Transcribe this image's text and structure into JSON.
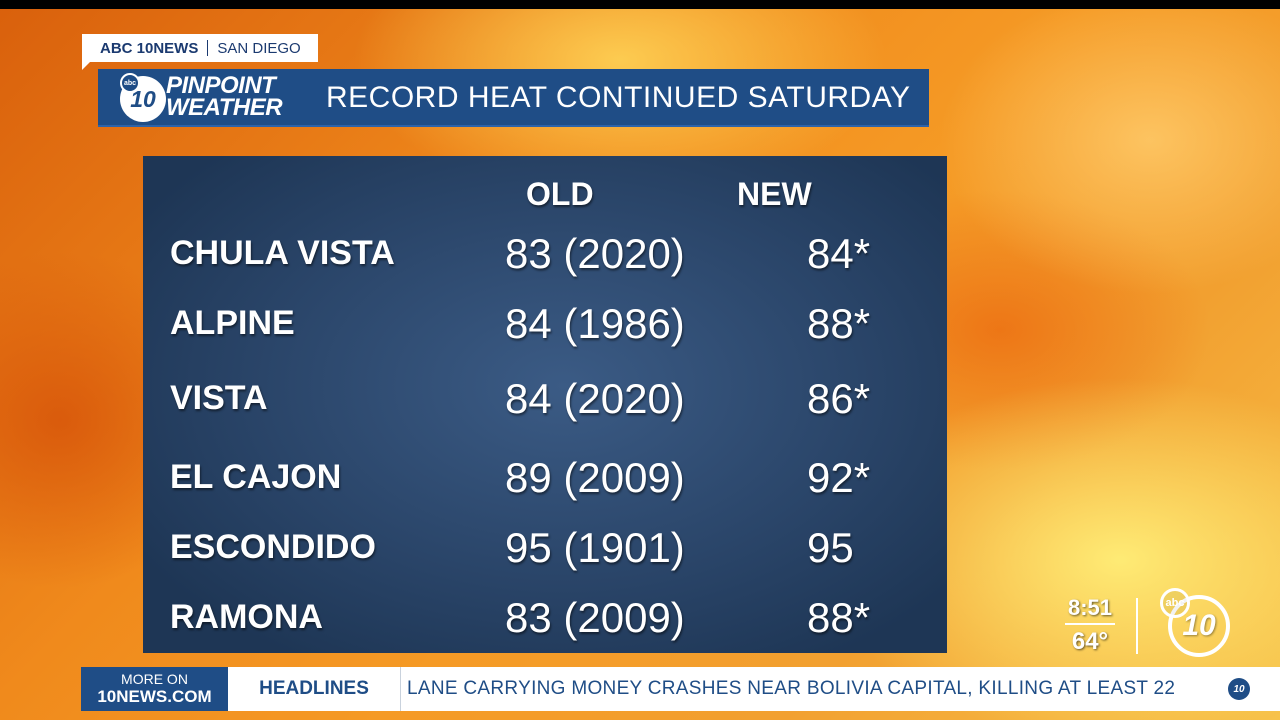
{
  "source_tag": {
    "brand": "ABC 10NEWS",
    "location": "SAN DIEGO"
  },
  "title_bar": {
    "logo_mark": "10",
    "logo_abc": "abc",
    "logo_line1": "PINPOINT",
    "logo_line2": "WEATHER",
    "title": "RECORD HEAT CONTINUED SATURDAY"
  },
  "table": {
    "headers": {
      "old": "OLD",
      "new": "NEW"
    },
    "rows": [
      {
        "city": "CHULA VISTA",
        "old": "83 (2020)",
        "new": "84*"
      },
      {
        "city": "ALPINE",
        "old": "84 (1986)",
        "new": "88*"
      },
      {
        "city": "VISTA",
        "old": "84 (2020)",
        "new": "86*"
      },
      {
        "city": "EL CAJON",
        "old": "89 (2009)",
        "new": "92*"
      },
      {
        "city": "ESCONDIDO",
        "old": "95 (1901)",
        "new": "95"
      },
      {
        "city": "RAMONA",
        "old": "83 (2009)",
        "new": "88*"
      }
    ]
  },
  "bug": {
    "time": "8:51",
    "temp": "64°",
    "logo_mark": "10",
    "logo_abc": "abc"
  },
  "ticker": {
    "more_line1": "MORE ON",
    "more_line2": "10NEWS.COM",
    "section": "HEADLINES",
    "headline": "LANE CARRYING MONEY CRASHES NEAR BOLIVIA CAPITAL, KILLING AT LEAST 22",
    "logo_mark": "10"
  },
  "colors": {
    "brand_blue": "#1f4d86",
    "panel": "#2a4569",
    "fire_orange": "#f08a1c"
  }
}
